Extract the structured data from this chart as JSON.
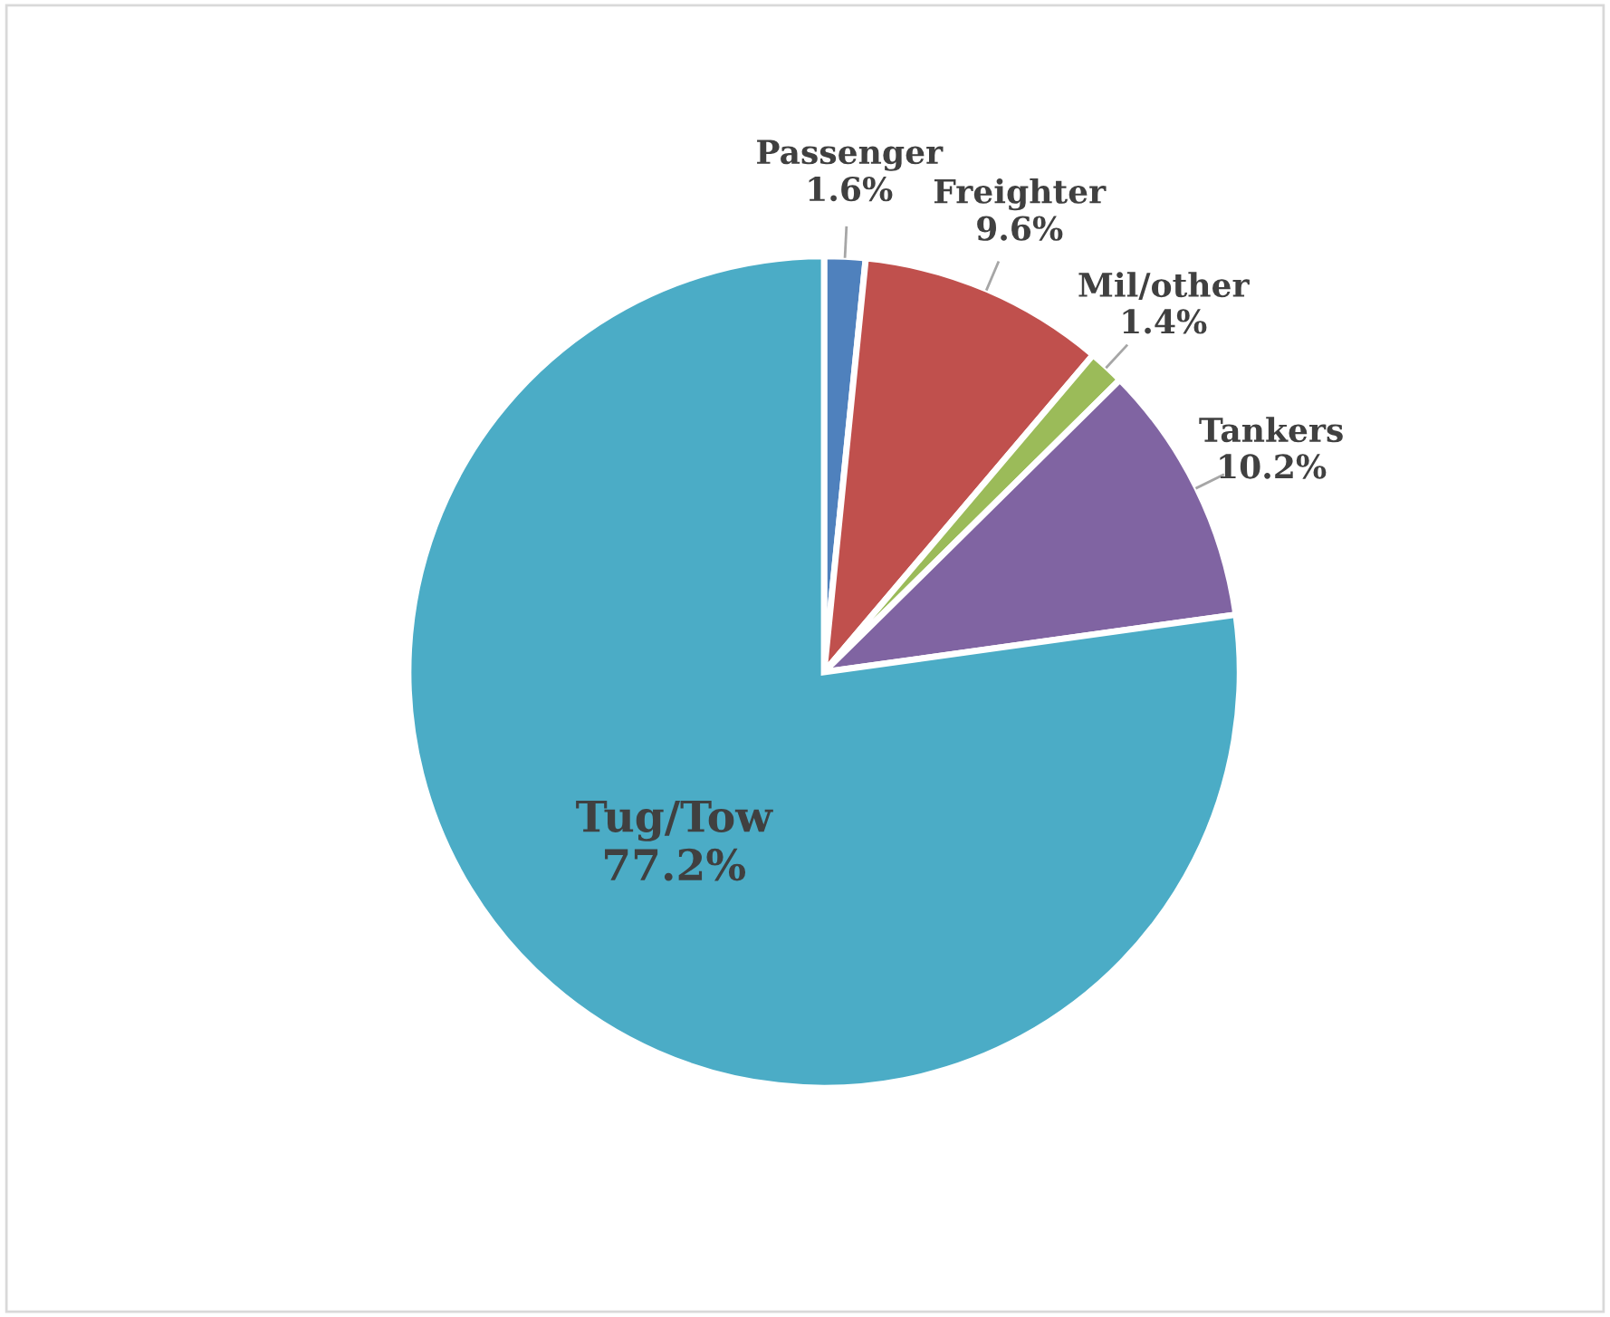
{
  "chart_data": {
    "type": "pie",
    "categories": [
      "Passenger",
      "Freighter",
      "Mil/other",
      "Tankers",
      "Tug/Tow"
    ],
    "values": [
      1.6,
      9.6,
      1.4,
      10.2,
      77.2
    ],
    "colors": [
      "#4f81bd",
      "#c0504d",
      "#9bbb59",
      "#8064a2",
      "#4bacc6"
    ],
    "value_labels": [
      "1.6%",
      "9.6%",
      "1.4%",
      "10.2%",
      "77.2%"
    ]
  }
}
